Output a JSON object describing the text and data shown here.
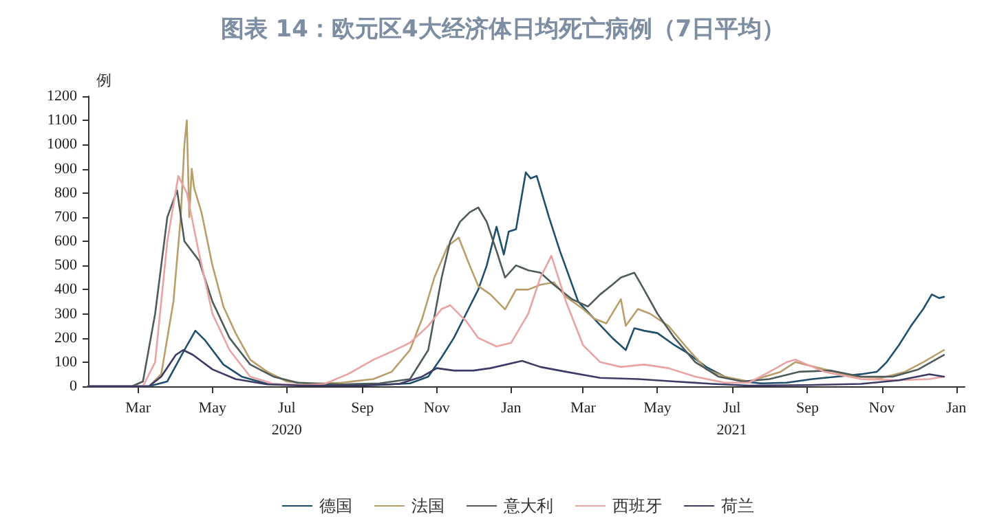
{
  "chart_data": {
    "type": "line",
    "title": "图表 14：欧元区4大经济体日均死亡病例（7日平均）",
    "ylabel": "例",
    "xlim": [
      "2020-01-20",
      "2022-01-08"
    ],
    "ylim": [
      0,
      1200
    ],
    "yticks": [
      0,
      100,
      200,
      300,
      400,
      500,
      600,
      700,
      800,
      900,
      1000,
      1100,
      1200
    ],
    "xticks": [
      {
        "value": "2020-03-01",
        "label": "Mar"
      },
      {
        "value": "2020-05-01",
        "label": "May"
      },
      {
        "value": "2020-07-01",
        "label": "Jul\n2020"
      },
      {
        "value": "2020-09-01",
        "label": "Sep"
      },
      {
        "value": "2020-11-01",
        "label": "Nov"
      },
      {
        "value": "2021-01-01",
        "label": "Jan"
      },
      {
        "value": "2021-03-01",
        "label": "Mar"
      },
      {
        "value": "2021-05-01",
        "label": "May"
      },
      {
        "value": "2021-07-01",
        "label": "Jul\n2021"
      },
      {
        "value": "2021-09-01",
        "label": "Sep"
      },
      {
        "value": "2021-11-01",
        "label": "Nov"
      },
      {
        "value": "2022-01-01",
        "label": "Jan"
      }
    ],
    "grid": false,
    "legend": "bottom",
    "marker": "none",
    "line_style": "solid",
    "series": [
      {
        "name": "德国",
        "color": "#1f4f6b",
        "x": [
          "2020-01-20",
          "2020-03-10",
          "2020-03-25",
          "2020-04-08",
          "2020-04-17",
          "2020-04-25",
          "2020-05-10",
          "2020-05-25",
          "2020-06-15",
          "2020-07-15",
          "2020-08-15",
          "2020-09-15",
          "2020-10-10",
          "2020-10-25",
          "2020-11-05",
          "2020-11-15",
          "2020-11-25",
          "2020-12-05",
          "2020-12-12",
          "2020-12-20",
          "2020-12-26",
          "2020-12-30",
          "2021-01-05",
          "2021-01-13",
          "2021-01-17",
          "2021-01-22",
          "2021-02-01",
          "2021-02-10",
          "2021-02-25",
          "2021-03-10",
          "2021-03-25",
          "2021-04-05",
          "2021-04-12",
          "2021-04-20",
          "2021-05-01",
          "2021-05-15",
          "2021-05-25",
          "2021-06-10",
          "2021-06-25",
          "2021-07-10",
          "2021-07-25",
          "2021-08-15",
          "2021-09-05",
          "2021-09-25",
          "2021-10-15",
          "2021-10-28",
          "2021-11-05",
          "2021-11-15",
          "2021-11-25",
          "2021-12-05",
          "2021-12-12",
          "2021-12-18",
          "2021-12-22"
        ],
        "values": [
          0,
          0,
          20,
          150,
          230,
          190,
          90,
          40,
          10,
          5,
          5,
          6,
          12,
          40,
          120,
          200,
          300,
          400,
          500,
          660,
          545,
          640,
          650,
          885,
          860,
          870,
          700,
          560,
          350,
          280,
          200,
          150,
          240,
          230,
          220,
          170,
          140,
          80,
          40,
          20,
          12,
          15,
          30,
          40,
          50,
          60,
          100,
          170,
          250,
          320,
          380,
          365,
          370
        ]
      },
      {
        "name": "法国",
        "color": "#b89e6a",
        "x": [
          "2020-01-20",
          "2020-03-10",
          "2020-03-20",
          "2020-03-30",
          "2020-04-05",
          "2020-04-08",
          "2020-04-10",
          "2020-04-12",
          "2020-04-14",
          "2020-04-16",
          "2020-04-22",
          "2020-05-01",
          "2020-05-10",
          "2020-05-20",
          "2020-06-01",
          "2020-06-15",
          "2020-07-01",
          "2020-07-20",
          "2020-08-15",
          "2020-09-10",
          "2020-09-25",
          "2020-10-10",
          "2020-10-20",
          "2020-10-30",
          "2020-11-10",
          "2020-11-19",
          "2020-11-28",
          "2020-12-05",
          "2020-12-15",
          "2020-12-27",
          "2021-01-05",
          "2021-01-15",
          "2021-01-25",
          "2021-02-05",
          "2021-02-15",
          "2021-03-01",
          "2021-03-10",
          "2021-03-20",
          "2021-04-01",
          "2021-04-05",
          "2021-04-15",
          "2021-04-25",
          "2021-05-10",
          "2021-05-25",
          "2021-06-10",
          "2021-06-25",
          "2021-07-15",
          "2021-08-10",
          "2021-08-22",
          "2021-09-15",
          "2021-10-10",
          "2021-11-01",
          "2021-11-20",
          "2021-12-05",
          "2021-12-22"
        ],
        "values": [
          0,
          0,
          50,
          350,
          700,
          1000,
          1100,
          700,
          900,
          820,
          720,
          500,
          330,
          220,
          110,
          60,
          20,
          10,
          15,
          30,
          60,
          150,
          280,
          450,
          580,
          615,
          500,
          415,
          380,
          318,
          400,
          400,
          420,
          430,
          370,
          320,
          280,
          260,
          360,
          250,
          320,
          300,
          250,
          160,
          70,
          40,
          20,
          60,
          100,
          70,
          40,
          35,
          60,
          100,
          150
        ]
      },
      {
        "name": "意大利",
        "color": "#4f5b5b",
        "x": [
          "2020-01-20",
          "2020-02-25",
          "2020-03-05",
          "2020-03-15",
          "2020-03-25",
          "2020-04-02",
          "2020-04-08",
          "2020-04-20",
          "2020-05-01",
          "2020-05-15",
          "2020-06-01",
          "2020-06-20",
          "2020-07-10",
          "2020-08-15",
          "2020-09-15",
          "2020-10-10",
          "2020-10-25",
          "2020-11-05",
          "2020-11-12",
          "2020-11-20",
          "2020-11-28",
          "2020-12-05",
          "2020-12-12",
          "2020-12-20",
          "2020-12-27",
          "2021-01-05",
          "2021-01-15",
          "2021-01-25",
          "2021-02-05",
          "2021-02-20",
          "2021-03-05",
          "2021-03-15",
          "2021-03-25",
          "2021-04-01",
          "2021-04-12",
          "2021-04-20",
          "2021-05-01",
          "2021-05-15",
          "2021-06-01",
          "2021-06-20",
          "2021-07-10",
          "2021-08-01",
          "2021-08-25",
          "2021-09-20",
          "2021-10-15",
          "2021-11-10",
          "2021-12-01",
          "2021-12-22"
        ],
        "values": [
          0,
          0,
          20,
          300,
          700,
          810,
          600,
          520,
          350,
          200,
          90,
          40,
          15,
          8,
          12,
          30,
          150,
          450,
          600,
          680,
          720,
          740,
          680,
          560,
          450,
          500,
          480,
          470,
          420,
          360,
          330,
          380,
          420,
          450,
          470,
          400,
          300,
          200,
          100,
          40,
          20,
          30,
          60,
          65,
          40,
          40,
          70,
          130
        ]
      },
      {
        "name": "西班牙",
        "color": "#eaa3a3",
        "x": [
          "2020-01-20",
          "2020-03-05",
          "2020-03-15",
          "2020-03-25",
          "2020-04-03",
          "2020-04-10",
          "2020-04-20",
          "2020-05-01",
          "2020-05-15",
          "2020-06-01",
          "2020-06-20",
          "2020-07-15",
          "2020-08-01",
          "2020-08-20",
          "2020-09-10",
          "2020-09-27",
          "2020-10-10",
          "2020-10-25",
          "2020-11-05",
          "2020-11-12",
          "2020-11-25",
          "2020-12-05",
          "2020-12-20",
          "2021-01-01",
          "2021-01-15",
          "2021-01-25",
          "2021-02-03",
          "2021-02-15",
          "2021-03-01",
          "2021-03-15",
          "2021-04-01",
          "2021-04-20",
          "2021-05-10",
          "2021-06-01",
          "2021-06-25",
          "2021-07-15",
          "2021-08-01",
          "2021-08-15",
          "2021-08-22",
          "2021-09-15",
          "2021-10-15",
          "2021-11-15",
          "2021-12-10",
          "2021-12-22"
        ],
        "values": [
          0,
          0,
          100,
          600,
          870,
          800,
          550,
          300,
          150,
          40,
          10,
          5,
          10,
          50,
          110,
          148,
          180,
          250,
          320,
          335,
          270,
          200,
          165,
          180,
          300,
          450,
          540,
          350,
          170,
          100,
          80,
          90,
          75,
          40,
          15,
          15,
          60,
          100,
          110,
          60,
          30,
          25,
          30,
          40
        ]
      },
      {
        "name": "荷兰",
        "color": "#3b3b66",
        "x": [
          "2020-01-20",
          "2020-03-10",
          "2020-03-20",
          "2020-04-01",
          "2020-04-07",
          "2020-04-15",
          "2020-05-01",
          "2020-05-20",
          "2020-06-15",
          "2020-07-15",
          "2020-09-01",
          "2020-10-01",
          "2020-10-20",
          "2020-11-01",
          "2020-11-15",
          "2020-12-01",
          "2020-12-15",
          "2021-01-10",
          "2021-01-25",
          "2021-02-15",
          "2021-03-15",
          "2021-04-15",
          "2021-05-15",
          "2021-06-15",
          "2021-07-15",
          "2021-09-01",
          "2021-10-15",
          "2021-11-15",
          "2021-12-10",
          "2021-12-22"
        ],
        "values": [
          0,
          0,
          40,
          130,
          150,
          130,
          70,
          30,
          8,
          3,
          3,
          10,
          40,
          75,
          65,
          65,
          75,
          105,
          80,
          60,
          35,
          30,
          20,
          10,
          3,
          5,
          10,
          25,
          50,
          40
        ]
      }
    ]
  }
}
